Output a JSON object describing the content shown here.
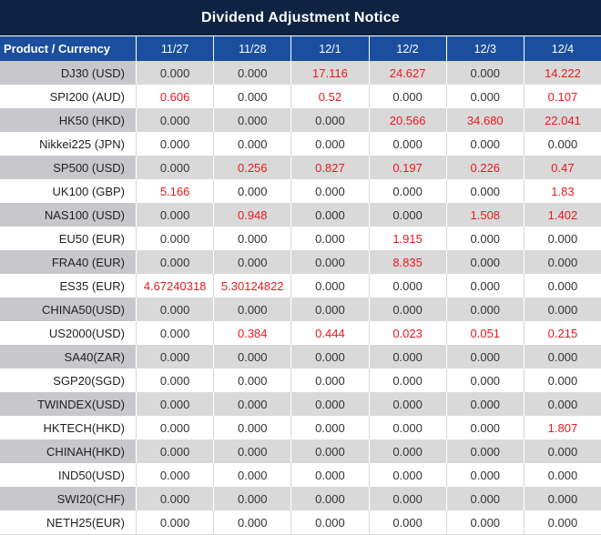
{
  "title": "Dividend Adjustment Notice",
  "header": {
    "product_label": "Product / Currency",
    "dates": [
      "11/27",
      "11/28",
      "12/1",
      "12/2",
      "12/3",
      "12/4"
    ]
  },
  "rows": [
    {
      "product": "DJ30 (USD)",
      "values": [
        "0.000",
        "0.000",
        "17.116",
        "24.627",
        "0.000",
        "14.222"
      ]
    },
    {
      "product": "SPI200 (AUD)",
      "values": [
        "0.606",
        "0.000",
        "0.52",
        "0.000",
        "0.000",
        "0.107"
      ]
    },
    {
      "product": "HK50 (HKD)",
      "values": [
        "0.000",
        "0.000",
        "0.000",
        "20.566",
        "34.680",
        "22.041"
      ]
    },
    {
      "product": "Nikkei225 (JPN)",
      "values": [
        "0.000",
        "0.000",
        "0.000",
        "0.000",
        "0.000",
        "0.000"
      ]
    },
    {
      "product": "SP500 (USD)",
      "values": [
        "0.000",
        "0.256",
        "0.827",
        "0.197",
        "0.226",
        "0.47"
      ]
    },
    {
      "product": "UK100 (GBP)",
      "values": [
        "5.166",
        "0.000",
        "0.000",
        "0.000",
        "0.000",
        "1.83"
      ]
    },
    {
      "product": "NAS100 (USD)",
      "values": [
        "0.000",
        "0.948",
        "0.000",
        "0.000",
        "1.508",
        "1.402"
      ]
    },
    {
      "product": "EU50 (EUR)",
      "values": [
        "0.000",
        "0.000",
        "0.000",
        "1.915",
        "0.000",
        "0.000"
      ]
    },
    {
      "product": "FRA40 (EUR)",
      "values": [
        "0.000",
        "0.000",
        "0.000",
        "8.835",
        "0.000",
        "0.000"
      ]
    },
    {
      "product": "ES35 (EUR)",
      "values": [
        "4.67240318",
        "5.30124822",
        "0.000",
        "0.000",
        "0.000",
        "0.000"
      ]
    },
    {
      "product": "CHINA50(USD)",
      "values": [
        "0.000",
        "0.000",
        "0.000",
        "0.000",
        "0.000",
        "0.000"
      ]
    },
    {
      "product": "US2000(USD)",
      "values": [
        "0.000",
        "0.384",
        "0.444",
        "0.023",
        "0.051",
        "0.215"
      ]
    },
    {
      "product": "SA40(ZAR)",
      "values": [
        "0.000",
        "0.000",
        "0.000",
        "0.000",
        "0.000",
        "0.000"
      ]
    },
    {
      "product": "SGP20(SGD)",
      "values": [
        "0.000",
        "0.000",
        "0.000",
        "0.000",
        "0.000",
        "0.000"
      ]
    },
    {
      "product": "TWINDEX(USD)",
      "values": [
        "0.000",
        "0.000",
        "0.000",
        "0.000",
        "0.000",
        "0.000"
      ]
    },
    {
      "product": "HKTECH(HKD)",
      "values": [
        "0.000",
        "0.000",
        "0.000",
        "0.000",
        "0.000",
        "1.807"
      ]
    },
    {
      "product": "CHINAH(HKD)",
      "values": [
        "0.000",
        "0.000",
        "0.000",
        "0.000",
        "0.000",
        "0.000"
      ]
    },
    {
      "product": "IND50(USD)",
      "values": [
        "0.000",
        "0.000",
        "0.000",
        "0.000",
        "0.000",
        "0.000"
      ]
    },
    {
      "product": "SWI20(CHF)",
      "values": [
        "0.000",
        "0.000",
        "0.000",
        "0.000",
        "0.000",
        "0.000"
      ]
    },
    {
      "product": "NETH25(EUR)",
      "values": [
        "0.000",
        "0.000",
        "0.000",
        "0.000",
        "0.000",
        "0.000"
      ]
    }
  ],
  "zero_display": "0.000",
  "colors": {
    "title_bg": "#0e2342",
    "header_bg": "#1b4f9e",
    "header_text": "#ffffff",
    "stripe_label_bg": "#c8c8cc",
    "stripe_value_bg": "#d9d9d9",
    "text_dark": "#333333",
    "text_red": "#e8191d"
  }
}
